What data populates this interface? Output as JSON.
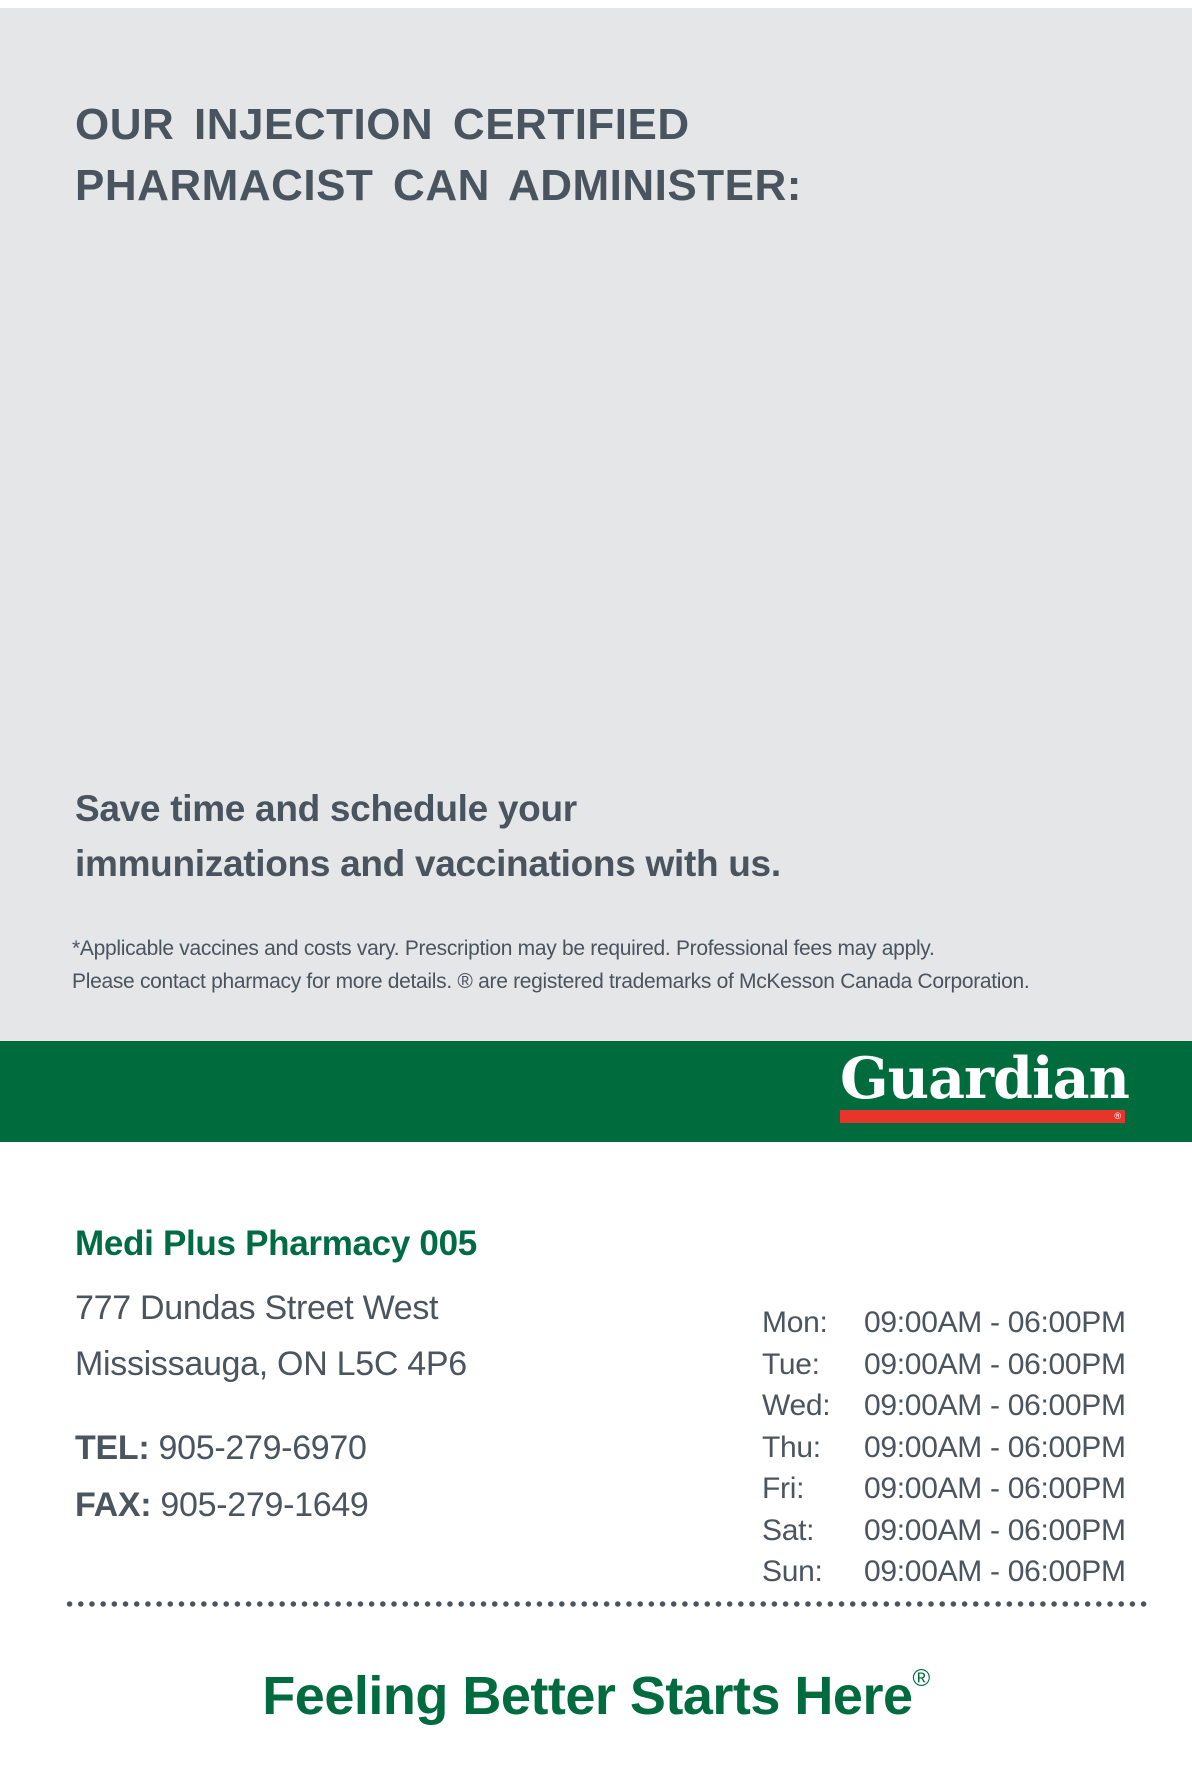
{
  "hero": {
    "heading_line1": "OUR INJECTION CERTIFIED",
    "heading_line2": "PHARMACIST CAN ADMINISTER:",
    "subheading_line1": "Save time and schedule your",
    "subheading_line2": "immunizations and vaccinations with us.",
    "disclaimer_line1": "*Applicable vaccines and costs vary. Prescription may be required. Professional fees may apply.",
    "disclaimer_line2": "Please contact pharmacy for more details. ® are registered trademarks of McKesson Canada Corporation."
  },
  "brand_banner": {
    "logo_text": "Guardian",
    "logo_registered_mark": "®"
  },
  "store": {
    "name": "Medi Plus Pharmacy 005",
    "address_line1": "777 Dundas Street West",
    "address_line2": "Mississauga, ON L5C 4P6",
    "tel_label": "TEL:",
    "tel_number": "905-279-6970",
    "fax_label": "FAX:",
    "fax_number": "905-279-1649"
  },
  "hours": {
    "rows": [
      {
        "day": "Mon:",
        "time": "09:00AM - 06:00PM"
      },
      {
        "day": "Tue:",
        "time": "09:00AM - 06:00PM"
      },
      {
        "day": "Wed:",
        "time": "09:00AM - 06:00PM"
      },
      {
        "day": "Thu:",
        "time": "09:00AM - 06:00PM"
      },
      {
        "day": "Fri:",
        "time": "09:00AM - 06:00PM"
      },
      {
        "day": "Sat:",
        "time": "09:00AM - 06:00PM"
      },
      {
        "day": "Sun:",
        "time": "09:00AM - 06:00PM"
      }
    ]
  },
  "tagline": {
    "text": "Feeling Better Starts Here",
    "registered_mark": "®"
  },
  "colors": {
    "background_gray": "#e4e6e8",
    "slate_text": "#4a545f",
    "brand_green": "#006b3c",
    "text_green": "#006b3e",
    "logo_red": "#e8352b"
  }
}
